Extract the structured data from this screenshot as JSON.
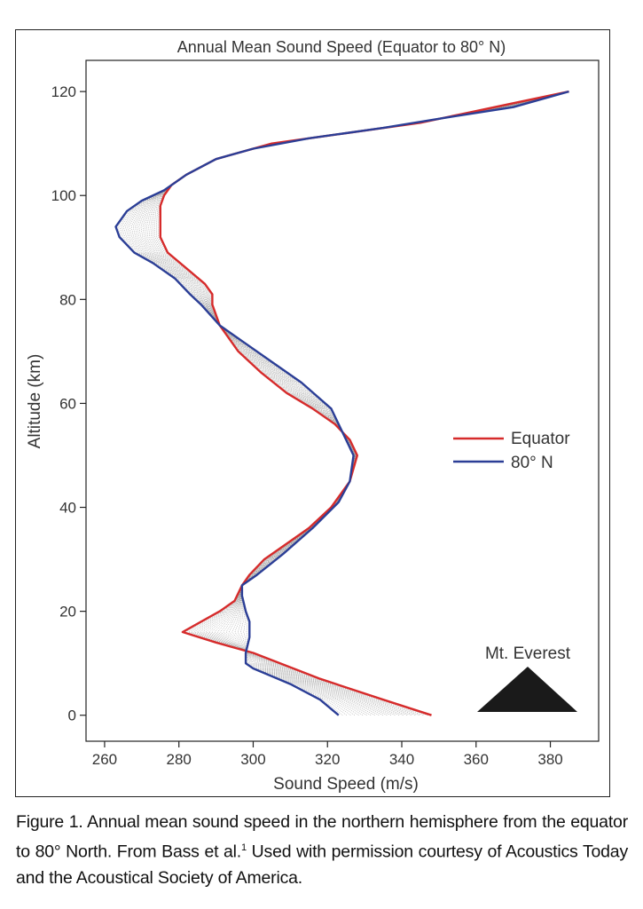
{
  "chart_data": {
    "type": "line",
    "title": "Annual Mean Sound Speed (Equator to 80° N)",
    "xlabel": "Sound Speed (m/s)",
    "ylabel": "Altitude (km)",
    "xlim": [
      255,
      393
    ],
    "ylim": [
      -5,
      126
    ],
    "xticks": [
      260,
      280,
      300,
      320,
      340,
      360,
      380
    ],
    "yticks": [
      0,
      20,
      40,
      60,
      80,
      100,
      120
    ],
    "legend_position": "right-middle",
    "series": [
      {
        "name": "Equator",
        "color": "#d62b2b",
        "points": [
          [
            348,
            0
          ],
          [
            335,
            3
          ],
          [
            318,
            7
          ],
          [
            300,
            12
          ],
          [
            290,
            14
          ],
          [
            281,
            16
          ],
          [
            286,
            18
          ],
          [
            291,
            20
          ],
          [
            295,
            22
          ],
          [
            297,
            25
          ],
          [
            299,
            27
          ],
          [
            303,
            30
          ],
          [
            309,
            33
          ],
          [
            315,
            36
          ],
          [
            321,
            40
          ],
          [
            326,
            45
          ],
          [
            328,
            50
          ],
          [
            326,
            53
          ],
          [
            322,
            56
          ],
          [
            316,
            59
          ],
          [
            309,
            62
          ],
          [
            302,
            66
          ],
          [
            296,
            70
          ],
          [
            291,
            75
          ],
          [
            289,
            79
          ],
          [
            289,
            81
          ],
          [
            287,
            83
          ],
          [
            282,
            86
          ],
          [
            277,
            89
          ],
          [
            275,
            92
          ],
          [
            275,
            95
          ],
          [
            275,
            98
          ],
          [
            276,
            100
          ],
          [
            278,
            102
          ],
          [
            282,
            104
          ],
          [
            290,
            107
          ],
          [
            305,
            110
          ],
          [
            325,
            112
          ],
          [
            345,
            114
          ],
          [
            365,
            117
          ],
          [
            385,
            120
          ]
        ]
      },
      {
        "name": "80° N",
        "color": "#2b3e96",
        "points": [
          [
            323,
            0
          ],
          [
            318,
            3
          ],
          [
            310,
            6
          ],
          [
            300,
            9
          ],
          [
            298,
            10
          ],
          [
            298,
            12
          ],
          [
            299,
            15
          ],
          [
            299,
            18
          ],
          [
            298,
            20
          ],
          [
            297,
            23
          ],
          [
            297,
            25
          ],
          [
            301,
            27
          ],
          [
            308,
            31
          ],
          [
            316,
            36
          ],
          [
            323,
            41
          ],
          [
            326,
            45
          ],
          [
            327,
            50
          ],
          [
            325,
            53
          ],
          [
            321,
            59
          ],
          [
            313,
            64
          ],
          [
            305,
            68
          ],
          [
            297,
            72
          ],
          [
            291,
            75
          ],
          [
            286,
            79
          ],
          [
            283,
            81
          ],
          [
            279,
            84
          ],
          [
            273,
            87
          ],
          [
            268,
            89
          ],
          [
            264,
            92
          ],
          [
            263,
            94
          ],
          [
            266,
            97
          ],
          [
            270,
            99
          ],
          [
            276,
            101
          ],
          [
            282,
            104
          ],
          [
            290,
            107
          ],
          [
            300,
            109
          ],
          [
            315,
            111
          ],
          [
            335,
            113
          ],
          [
            352,
            115
          ],
          [
            370,
            117
          ],
          [
            385,
            120
          ]
        ]
      }
    ],
    "intermediate_profiles": 22,
    "annotations": [
      {
        "text": "Mt. Everest",
        "altitude_km": 8.8
      }
    ]
  },
  "caption": {
    "text_before_sup": "Figure 1. Annual mean sound speed in the northern hemisphere from the equator to 80° North. From Bass et al.",
    "sup": "1",
    "text_after_sup": " Used with permission courtesy of Acoustics Today and the Acoustical Society of America."
  }
}
